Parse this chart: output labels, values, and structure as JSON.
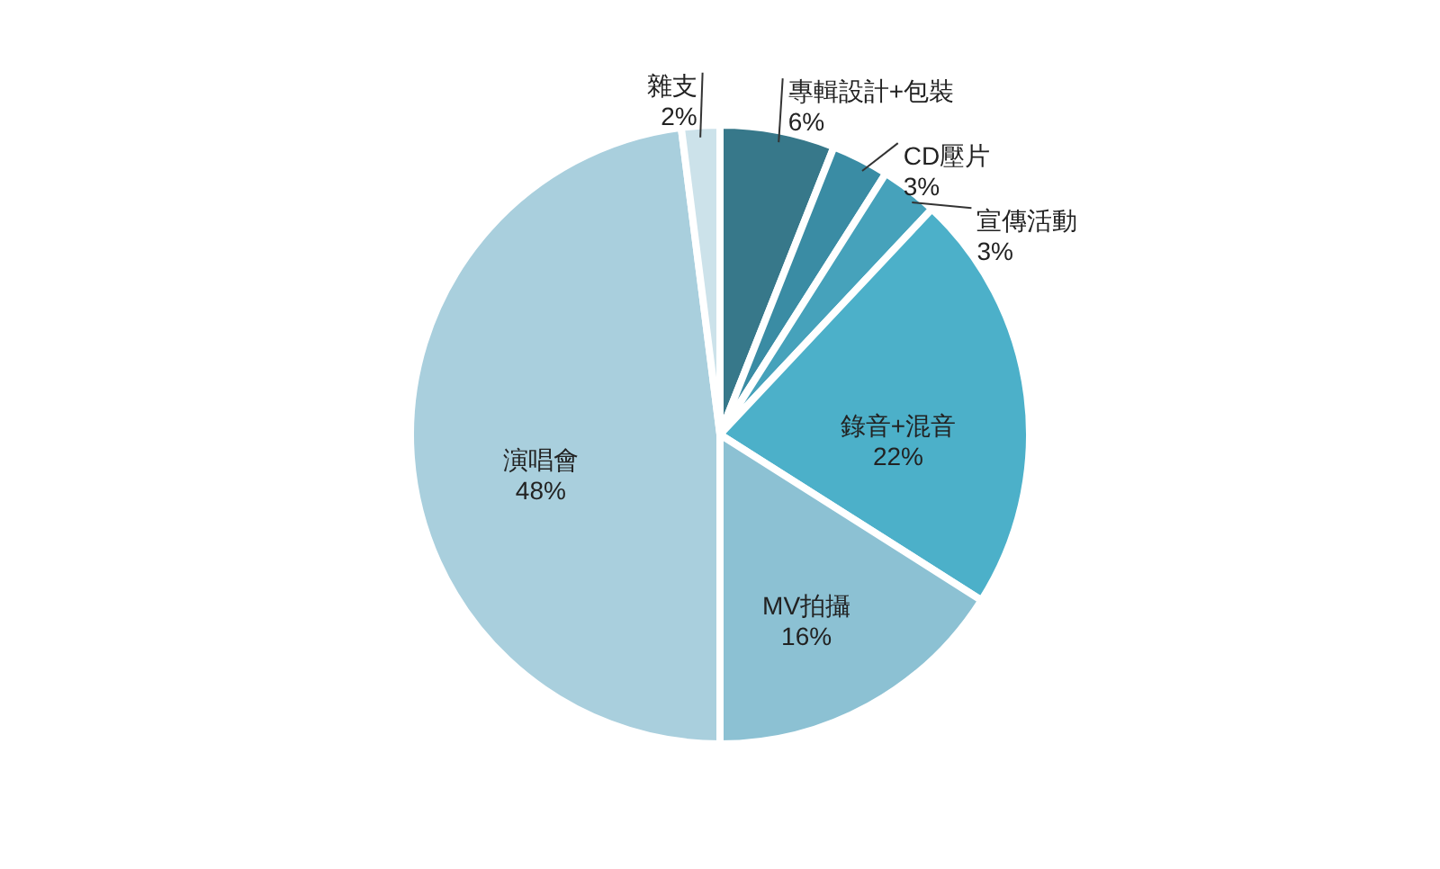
{
  "chart_data": {
    "type": "pie",
    "categories": [
      "專輯設計+包裝",
      "CD壓片",
      "宣傳活動",
      "錄音+混音",
      "MV拍攝",
      "演唱會",
      "雜支"
    ],
    "values": [
      6,
      3,
      3,
      22,
      16,
      48,
      2
    ],
    "colors": [
      "#37788a",
      "#3a8ca4",
      "#46a2bb",
      "#4cb0c9",
      "#8cc1d3",
      "#a9cfdd",
      "#cce2ea"
    ],
    "value_labels": [
      "6%",
      "3%",
      "3%",
      "22%",
      "16%",
      "48%",
      "2%"
    ]
  }
}
